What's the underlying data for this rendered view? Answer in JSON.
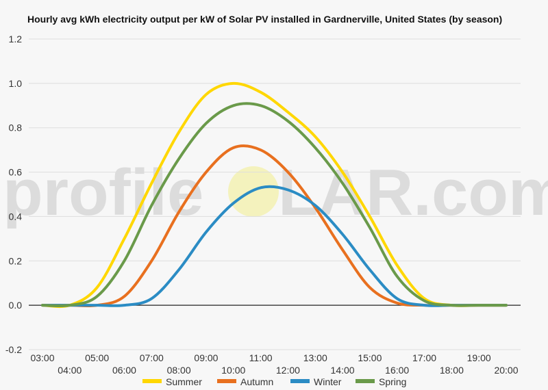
{
  "watermark": {
    "left": "profile",
    "right": "LAR.com"
  },
  "colors": {
    "background": "#f7f7f7",
    "grid": "#dddddd",
    "zero_line": "#222222",
    "sun": "#f3ef8e"
  },
  "chart_data": {
    "type": "line",
    "title": "Hourly avg kWh electricity output per kW of Solar PV installed in Gardnerville, United States (by season)",
    "xlabel": "",
    "ylabel": "",
    "x": [
      "03:00",
      "04:00",
      "05:00",
      "06:00",
      "07:00",
      "08:00",
      "09:00",
      "10:00",
      "11:00",
      "12:00",
      "13:00",
      "14:00",
      "15:00",
      "16:00",
      "17:00",
      "18:00",
      "19:00",
      "20:00"
    ],
    "x_tick_labels_upper": [
      "03:00",
      "05:00",
      "07:00",
      "09:00",
      "11:00",
      "13:00",
      "15:00",
      "17:00",
      "19:00"
    ],
    "x_tick_labels_lower": [
      "04:00",
      "06:00",
      "08:00",
      "10:00",
      "12:00",
      "14:00",
      "16:00",
      "18:00",
      "20:00"
    ],
    "ylim": [
      -0.2,
      1.2
    ],
    "y_ticks": [
      -0.2,
      0.0,
      0.2,
      0.4,
      0.6,
      0.8,
      1.0,
      1.2
    ],
    "y_tick_labels": [
      "-0.2",
      "0.0",
      "0.2",
      "0.4",
      "0.6",
      "0.8",
      "1.0",
      "1.2"
    ],
    "grid": "horizontal",
    "legend_position": "bottom",
    "series": [
      {
        "name": "Summer",
        "color": "#ffd700",
        "values": [
          0.0,
          0.0,
          0.08,
          0.3,
          0.55,
          0.78,
          0.95,
          1.0,
          0.96,
          0.87,
          0.76,
          0.6,
          0.4,
          0.18,
          0.03,
          0.0,
          0.0,
          0.0
        ]
      },
      {
        "name": "Autumn",
        "color": "#e8701f",
        "values": [
          0.0,
          0.0,
          0.0,
          0.04,
          0.2,
          0.42,
          0.6,
          0.71,
          0.7,
          0.6,
          0.44,
          0.25,
          0.08,
          0.01,
          0.0,
          0.0,
          0.0,
          0.0
        ]
      },
      {
        "name": "Winter",
        "color": "#2b8cc4",
        "values": [
          0.0,
          0.0,
          0.0,
          0.0,
          0.03,
          0.16,
          0.33,
          0.46,
          0.53,
          0.52,
          0.45,
          0.32,
          0.16,
          0.03,
          0.0,
          0.0,
          0.0,
          0.0
        ]
      },
      {
        "name": "Spring",
        "color": "#6a9a4a",
        "values": [
          0.0,
          0.0,
          0.04,
          0.2,
          0.45,
          0.66,
          0.82,
          0.9,
          0.9,
          0.83,
          0.71,
          0.55,
          0.35,
          0.13,
          0.02,
          0.0,
          0.0,
          0.0
        ]
      }
    ]
  }
}
